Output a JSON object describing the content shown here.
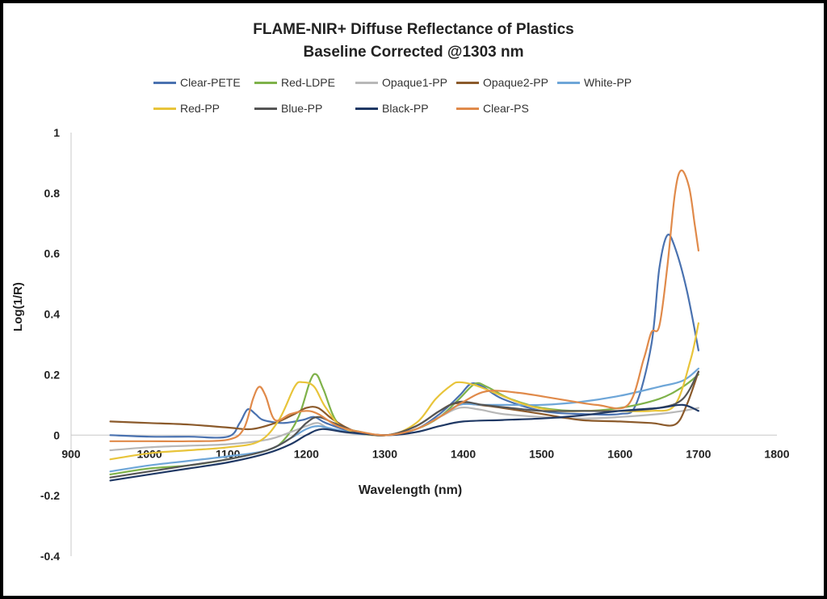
{
  "chart_data": {
    "type": "line",
    "title": "FLAME-NIR+ Diffuse Reflectance of Plastics",
    "subtitle": "Baseline Corrected @1303 nm",
    "xlabel": "Wavelength (nm)",
    "ylabel": "Log(1/R)",
    "xlim": [
      900,
      1800
    ],
    "ylim": [
      -0.4,
      1
    ],
    "x_ticks": [
      "900",
      "1000",
      "1100",
      "1200",
      "1300",
      "1400",
      "1500",
      "1600",
      "1700",
      "1800"
    ],
    "y_ticks": [
      "1",
      "0.8",
      "0.6",
      "0.4",
      "0.2",
      "0",
      "-0.2",
      "-0.4"
    ],
    "grid": false,
    "legend_position": "top",
    "series": [
      {
        "name": "Clear-PETE",
        "color": "#4a72b0",
        "points": [
          [
            950,
            0.0
          ],
          [
            1000,
            -0.005
          ],
          [
            1050,
            -0.005
          ],
          [
            1100,
            -0.005
          ],
          [
            1115,
            0.04
          ],
          [
            1125,
            0.085
          ],
          [
            1135,
            0.07
          ],
          [
            1145,
            0.05
          ],
          [
            1170,
            0.04
          ],
          [
            1195,
            0.05
          ],
          [
            1210,
            0.06
          ],
          [
            1225,
            0.04
          ],
          [
            1260,
            0.01
          ],
          [
            1303,
            0.0
          ],
          [
            1340,
            0.02
          ],
          [
            1370,
            0.07
          ],
          [
            1395,
            0.13
          ],
          [
            1410,
            0.17
          ],
          [
            1425,
            0.16
          ],
          [
            1450,
            0.12
          ],
          [
            1500,
            0.08
          ],
          [
            1550,
            0.07
          ],
          [
            1600,
            0.07
          ],
          [
            1620,
            0.1
          ],
          [
            1640,
            0.3
          ],
          [
            1650,
            0.55
          ],
          [
            1660,
            0.66
          ],
          [
            1670,
            0.62
          ],
          [
            1685,
            0.48
          ],
          [
            1700,
            0.28
          ]
        ]
      },
      {
        "name": "Red-LDPE",
        "color": "#7fb24a",
        "points": [
          [
            950,
            -0.13
          ],
          [
            1000,
            -0.11
          ],
          [
            1050,
            -0.1
          ],
          [
            1100,
            -0.08
          ],
          [
            1150,
            -0.05
          ],
          [
            1170,
            -0.02
          ],
          [
            1190,
            0.06
          ],
          [
            1205,
            0.18
          ],
          [
            1213,
            0.2
          ],
          [
            1222,
            0.15
          ],
          [
            1240,
            0.04
          ],
          [
            1270,
            0.01
          ],
          [
            1303,
            0.0
          ],
          [
            1340,
            0.02
          ],
          [
            1370,
            0.06
          ],
          [
            1395,
            0.12
          ],
          [
            1415,
            0.17
          ],
          [
            1430,
            0.16
          ],
          [
            1460,
            0.12
          ],
          [
            1500,
            0.09
          ],
          [
            1550,
            0.08
          ],
          [
            1600,
            0.09
          ],
          [
            1650,
            0.12
          ],
          [
            1680,
            0.16
          ],
          [
            1700,
            0.2
          ]
        ]
      },
      {
        "name": "Opaque1-PP",
        "color": "#b8b8b8",
        "points": [
          [
            950,
            -0.05
          ],
          [
            1000,
            -0.04
          ],
          [
            1050,
            -0.035
          ],
          [
            1100,
            -0.03
          ],
          [
            1150,
            -0.015
          ],
          [
            1180,
            0.01
          ],
          [
            1200,
            0.03
          ],
          [
            1215,
            0.04
          ],
          [
            1230,
            0.02
          ],
          [
            1260,
            0.005
          ],
          [
            1303,
            0.0
          ],
          [
            1340,
            0.02
          ],
          [
            1370,
            0.06
          ],
          [
            1395,
            0.09
          ],
          [
            1420,
            0.085
          ],
          [
            1450,
            0.07
          ],
          [
            1500,
            0.06
          ],
          [
            1550,
            0.055
          ],
          [
            1600,
            0.06
          ],
          [
            1650,
            0.07
          ],
          [
            1680,
            0.08
          ],
          [
            1700,
            0.09
          ]
        ]
      },
      {
        "name": "Opaque2-PP",
        "color": "#8b5a2b",
        "points": [
          [
            950,
            0.045
          ],
          [
            1000,
            0.04
          ],
          [
            1050,
            0.035
          ],
          [
            1100,
            0.025
          ],
          [
            1130,
            0.02
          ],
          [
            1160,
            0.04
          ],
          [
            1185,
            0.07
          ],
          [
            1200,
            0.09
          ],
          [
            1215,
            0.09
          ],
          [
            1235,
            0.05
          ],
          [
            1265,
            0.01
          ],
          [
            1303,
            0.0
          ],
          [
            1340,
            0.03
          ],
          [
            1370,
            0.08
          ],
          [
            1390,
            0.105
          ],
          [
            1420,
            0.1
          ],
          [
            1450,
            0.09
          ],
          [
            1500,
            0.07
          ],
          [
            1550,
            0.05
          ],
          [
            1600,
            0.045
          ],
          [
            1640,
            0.04
          ],
          [
            1670,
            0.035
          ],
          [
            1685,
            0.1
          ],
          [
            1700,
            0.21
          ]
        ]
      },
      {
        "name": "White-PP",
        "color": "#6ea6d8",
        "points": [
          [
            950,
            -0.12
          ],
          [
            1000,
            -0.1
          ],
          [
            1050,
            -0.085
          ],
          [
            1100,
            -0.07
          ],
          [
            1150,
            -0.05
          ],
          [
            1180,
            -0.01
          ],
          [
            1200,
            0.02
          ],
          [
            1215,
            0.03
          ],
          [
            1235,
            0.02
          ],
          [
            1265,
            0.005
          ],
          [
            1303,
            0.0
          ],
          [
            1340,
            0.02
          ],
          [
            1370,
            0.06
          ],
          [
            1395,
            0.1
          ],
          [
            1425,
            0.1
          ],
          [
            1460,
            0.1
          ],
          [
            1500,
            0.1
          ],
          [
            1550,
            0.11
          ],
          [
            1600,
            0.13
          ],
          [
            1650,
            0.16
          ],
          [
            1680,
            0.18
          ],
          [
            1700,
            0.22
          ]
        ]
      },
      {
        "name": "Red-PP",
        "color": "#e8c43a",
        "points": [
          [
            950,
            -0.08
          ],
          [
            1000,
            -0.06
          ],
          [
            1050,
            -0.05
          ],
          [
            1100,
            -0.04
          ],
          [
            1140,
            -0.02
          ],
          [
            1165,
            0.05
          ],
          [
            1185,
            0.16
          ],
          [
            1195,
            0.175
          ],
          [
            1210,
            0.16
          ],
          [
            1225,
            0.09
          ],
          [
            1250,
            0.02
          ],
          [
            1303,
            0.0
          ],
          [
            1340,
            0.04
          ],
          [
            1365,
            0.12
          ],
          [
            1385,
            0.165
          ],
          [
            1395,
            0.175
          ],
          [
            1415,
            0.165
          ],
          [
            1440,
            0.14
          ],
          [
            1480,
            0.1
          ],
          [
            1520,
            0.08
          ],
          [
            1560,
            0.08
          ],
          [
            1600,
            0.08
          ],
          [
            1640,
            0.08
          ],
          [
            1670,
            0.1
          ],
          [
            1690,
            0.25
          ],
          [
            1700,
            0.37
          ]
        ]
      },
      {
        "name": "Blue-PP",
        "color": "#555555",
        "points": [
          [
            950,
            -0.14
          ],
          [
            1000,
            -0.12
          ],
          [
            1050,
            -0.1
          ],
          [
            1100,
            -0.08
          ],
          [
            1150,
            -0.05
          ],
          [
            1180,
            -0.01
          ],
          [
            1200,
            0.04
          ],
          [
            1215,
            0.06
          ],
          [
            1235,
            0.04
          ],
          [
            1265,
            0.01
          ],
          [
            1303,
            0.0
          ],
          [
            1340,
            0.03
          ],
          [
            1370,
            0.08
          ],
          [
            1395,
            0.11
          ],
          [
            1425,
            0.1
          ],
          [
            1460,
            0.09
          ],
          [
            1500,
            0.08
          ],
          [
            1550,
            0.08
          ],
          [
            1600,
            0.08
          ],
          [
            1650,
            0.09
          ],
          [
            1680,
            0.12
          ],
          [
            1700,
            0.21
          ]
        ]
      },
      {
        "name": "Black-PP",
        "color": "#1f3864",
        "points": [
          [
            950,
            -0.15
          ],
          [
            1000,
            -0.13
          ],
          [
            1050,
            -0.11
          ],
          [
            1100,
            -0.09
          ],
          [
            1150,
            -0.06
          ],
          [
            1180,
            -0.03
          ],
          [
            1200,
            0.0
          ],
          [
            1220,
            0.02
          ],
          [
            1250,
            0.01
          ],
          [
            1303,
            0.0
          ],
          [
            1340,
            0.01
          ],
          [
            1370,
            0.03
          ],
          [
            1400,
            0.045
          ],
          [
            1450,
            0.05
          ],
          [
            1500,
            0.055
          ],
          [
            1550,
            0.065
          ],
          [
            1600,
            0.08
          ],
          [
            1650,
            0.09
          ],
          [
            1680,
            0.1
          ],
          [
            1700,
            0.08
          ]
        ]
      },
      {
        "name": "Clear-PS",
        "color": "#e08a4a",
        "points": [
          [
            950,
            -0.02
          ],
          [
            1000,
            -0.02
          ],
          [
            1050,
            -0.02
          ],
          [
            1100,
            -0.015
          ],
          [
            1120,
            0.02
          ],
          [
            1132,
            0.12
          ],
          [
            1140,
            0.16
          ],
          [
            1148,
            0.13
          ],
          [
            1160,
            0.05
          ],
          [
            1180,
            0.07
          ],
          [
            1200,
            0.08
          ],
          [
            1215,
            0.07
          ],
          [
            1240,
            0.03
          ],
          [
            1270,
            0.01
          ],
          [
            1303,
            0.0
          ],
          [
            1340,
            0.02
          ],
          [
            1370,
            0.06
          ],
          [
            1400,
            0.11
          ],
          [
            1430,
            0.145
          ],
          [
            1470,
            0.14
          ],
          [
            1520,
            0.12
          ],
          [
            1570,
            0.1
          ],
          [
            1610,
            0.1
          ],
          [
            1630,
            0.25
          ],
          [
            1640,
            0.34
          ],
          [
            1650,
            0.36
          ],
          [
            1660,
            0.55
          ],
          [
            1670,
            0.8
          ],
          [
            1678,
            0.875
          ],
          [
            1688,
            0.82
          ],
          [
            1695,
            0.7
          ],
          [
            1700,
            0.61
          ]
        ]
      }
    ]
  }
}
